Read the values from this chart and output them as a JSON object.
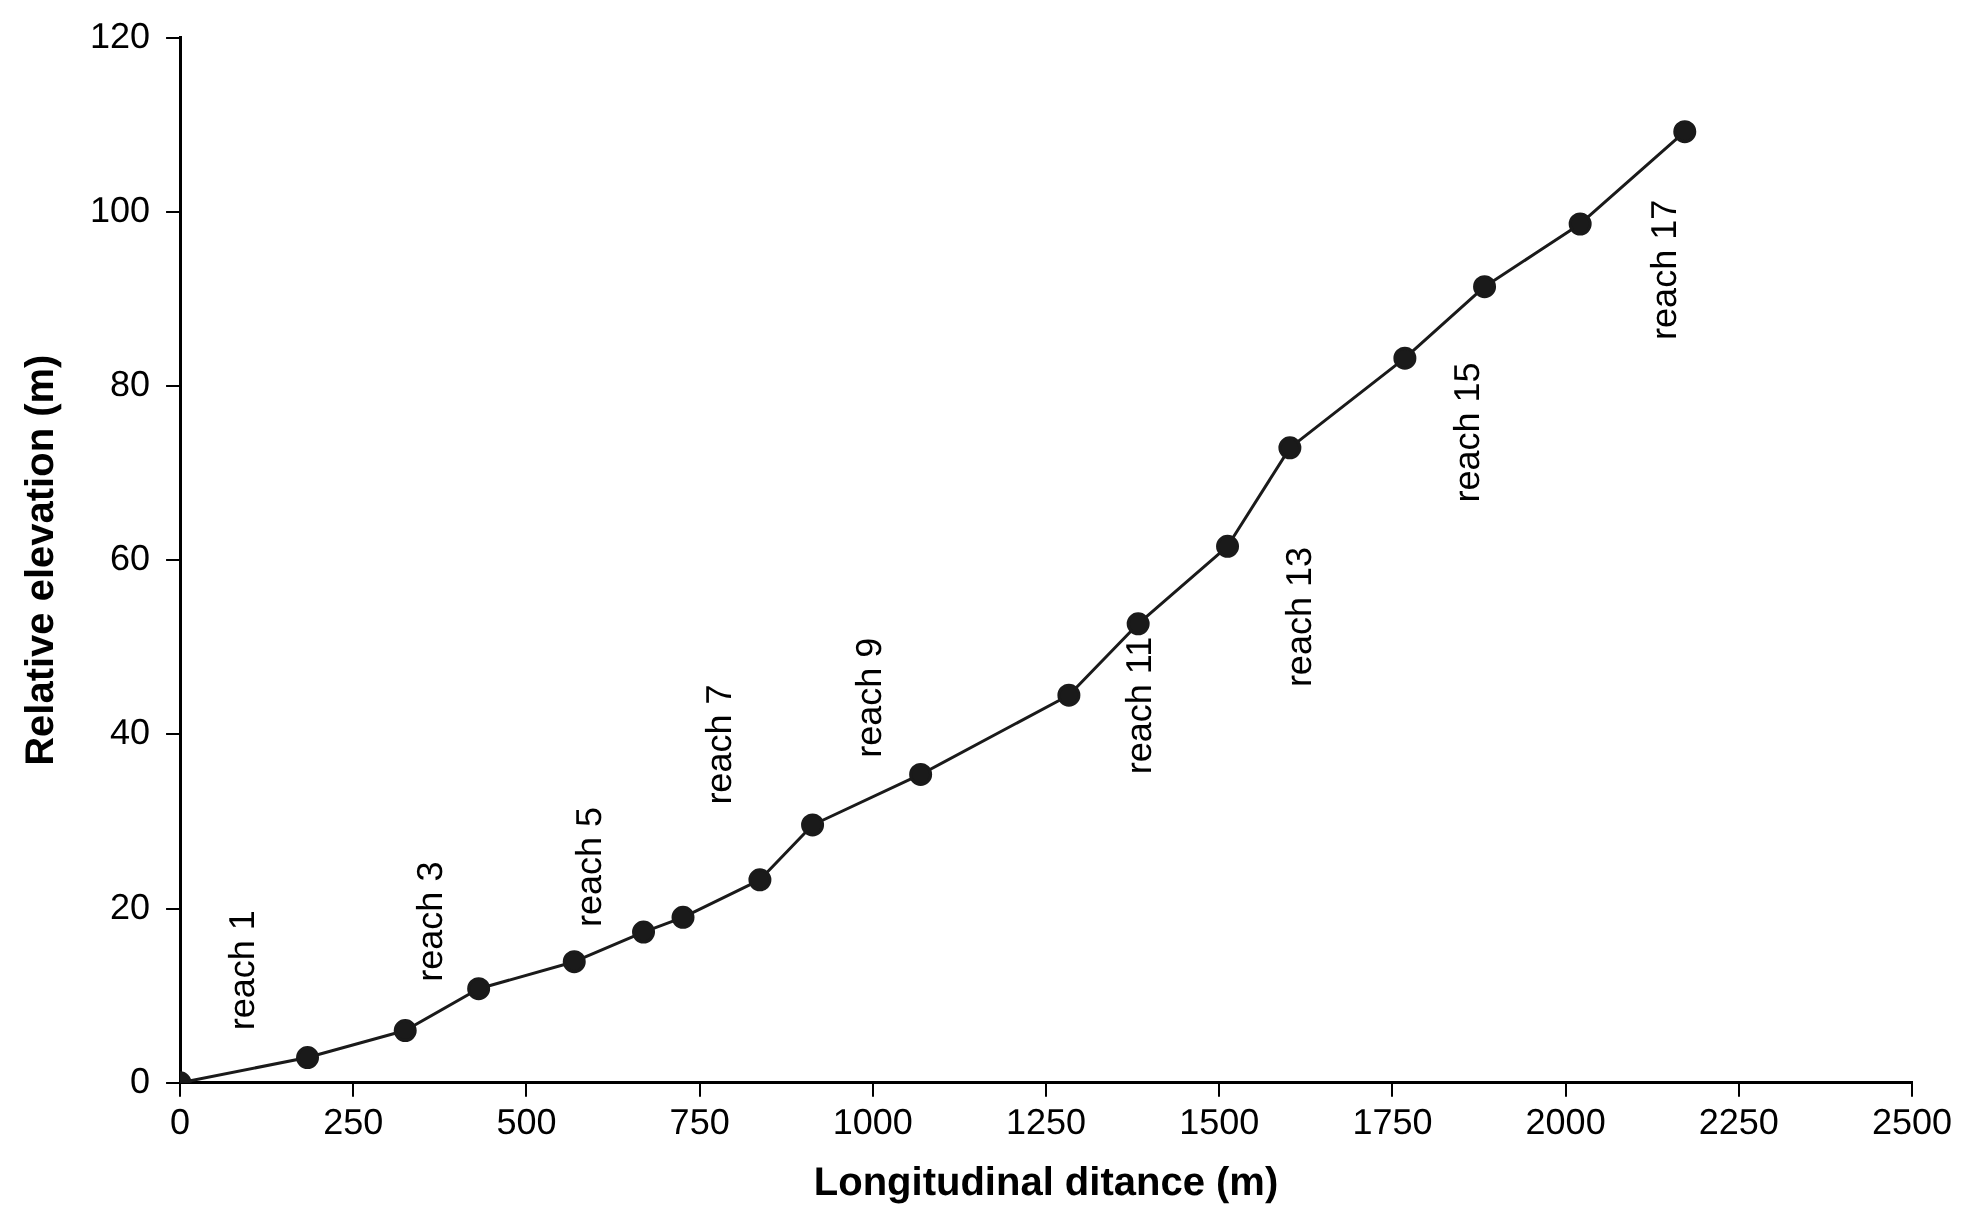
{
  "chart_data": {
    "type": "line",
    "xlabel": "Longitudinal ditance (m)",
    "ylabel": "Relative elevation (m)",
    "x": [
      0,
      184,
      325,
      431,
      569,
      669,
      726,
      837,
      913,
      1069,
      1283,
      1383,
      1512,
      1602,
      1768,
      1883,
      2021,
      2172
    ],
    "series": [
      {
        "color": "#1a1a1a",
        "values": [
          0,
          2.9,
          6.0,
          10.8,
          13.9,
          17.3,
          19.0,
          23.3,
          29.6,
          35.4,
          44.5,
          52.7,
          61.6,
          72.9,
          83.2,
          91.4,
          98.6,
          109.2
        ]
      }
    ],
    "xlim": [
      0,
      2500
    ],
    "xticks": [
      0,
      250,
      500,
      750,
      1000,
      1250,
      1500,
      1750,
      2000,
      2250,
      2500
    ],
    "ylim": [
      0,
      120
    ],
    "yticks": [
      0,
      20,
      40,
      60,
      80,
      100,
      120
    ],
    "grid": false,
    "legend": false,
    "marker": "circle",
    "line_style": "solid",
    "annotations": [
      "reach 1",
      "reach 3",
      "reach 5",
      "reach 7",
      "reach 9",
      "reach 11",
      "reach 13",
      "reach 15",
      "reach 17"
    ]
  }
}
